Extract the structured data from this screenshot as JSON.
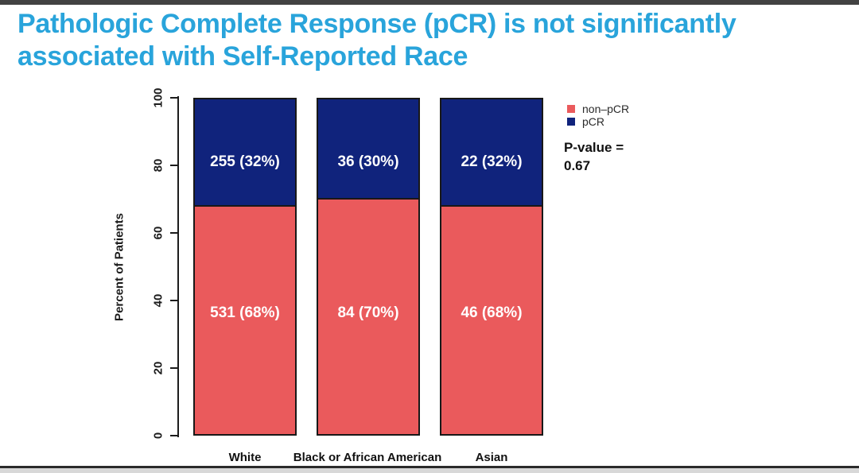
{
  "page": {
    "top_strip_color": "#424242",
    "bottom_line_color": "#2b2b2b",
    "bottom_strip_color": "#d8d8d8",
    "background": "#ffffff"
  },
  "title": {
    "line1": "Pathologic Complete Response (pCR) is not significantly",
    "line2": "associated with Self-Reported Race",
    "color": "#29a4db"
  },
  "chart_data": {
    "type": "bar",
    "stacked": true,
    "categories": [
      "White",
      "Black or African American",
      "Asian"
    ],
    "series": [
      {
        "name": "non-pCR",
        "color": "#ea5a5c",
        "values": [
          68,
          70,
          68
        ],
        "counts": [
          531,
          84,
          46
        ],
        "labels": [
          "531 (68%)",
          "84 (70%)",
          "46 (68%)"
        ]
      },
      {
        "name": "pCR",
        "color": "#10237c",
        "values": [
          32,
          30,
          32
        ],
        "counts": [
          255,
          36,
          22
        ],
        "labels": [
          "255 (32%)",
          "36 (30%)",
          "22 (32%)"
        ]
      }
    ],
    "xlabel": "",
    "ylabel": "Percent of Patients",
    "yticks": [
      "0",
      "20",
      "40",
      "60",
      "80",
      "100"
    ],
    "ylim": [
      0,
      100
    ],
    "grid": false,
    "legend": {
      "position": "right-top",
      "items": [
        {
          "label": "non–pCR",
          "color": "#ea5a5c"
        },
        {
          "label": "pCR",
          "color": "#10237c"
        }
      ]
    },
    "annotation": {
      "pvalue_label": "P-value =",
      "pvalue_value": "0.67"
    }
  }
}
